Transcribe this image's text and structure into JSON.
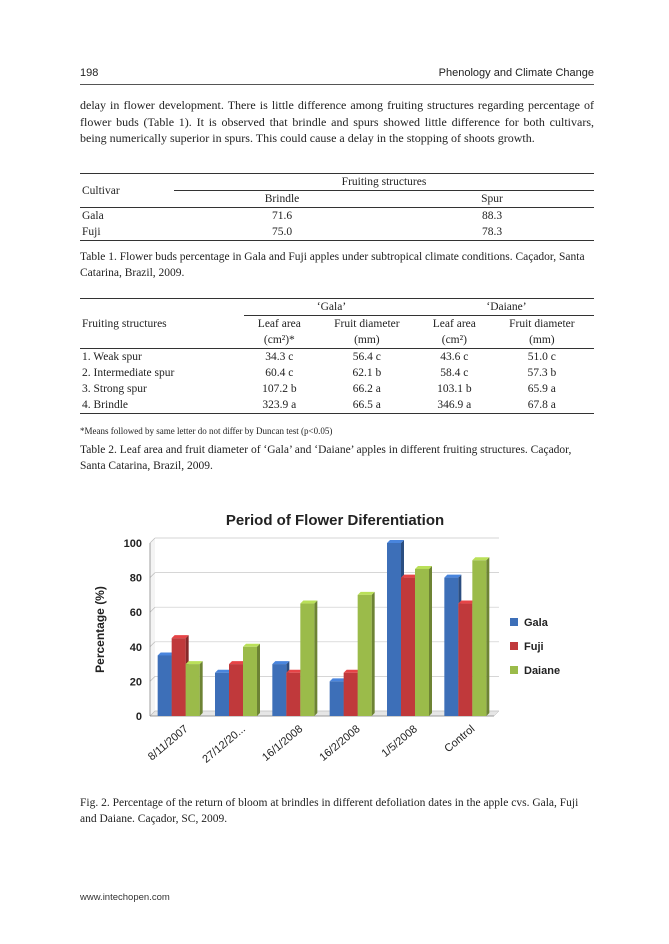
{
  "header": {
    "page_number": "198",
    "running_title": "Phenology and Climate Change"
  },
  "body_text": "delay in flower development. There is little difference among fruiting structures regarding percentage of flower buds (Table 1). It is observed that brindle and spurs showed little difference for both cultivars, being numerically superior in spurs. This could cause a delay in the stopping of shoots growth.",
  "table1": {
    "col_cultivar": "Cultivar",
    "group_header": "Fruiting structures",
    "col_brindle": "Brindle",
    "col_spur": "Spur",
    "rows": [
      {
        "cultivar": "Gala",
        "brindle": "71.6",
        "spur": "88.3"
      },
      {
        "cultivar": "Fuji",
        "brindle": "75.0",
        "spur": "78.3"
      }
    ],
    "caption": "Table 1. Flower buds percentage in Gala and Fuji apples under subtropical climate conditions. Caçador, Santa Catarina, Brazil, 2009."
  },
  "table2": {
    "group_gala": "‘Gala’",
    "group_daiane": "‘Daiane’",
    "col_structures": "Fruiting structures",
    "col_leaf_area": "Leaf area",
    "col_leaf_unit": "(cm²)*",
    "col_leaf_unit2": "(cm²)",
    "col_fruit_diam": "Fruit diameter",
    "col_fruit_unit": "(mm)",
    "rows": [
      {
        "structure": "1. Weak spur",
        "gala_leaf": "34.3 c",
        "gala_fruit": "56.4 c",
        "daiane_leaf": "43.6 c",
        "daiane_fruit": "51.0 c"
      },
      {
        "structure": "2. Intermediate spur",
        "gala_leaf": "60.4 c",
        "gala_fruit": "62.1 b",
        "daiane_leaf": "58.4 c",
        "daiane_fruit": "57.3 b"
      },
      {
        "structure": "3. Strong spur",
        "gala_leaf": "107.2 b",
        "gala_fruit": "66.2 a",
        "daiane_leaf": "103.1 b",
        "daiane_fruit": "65.9 a"
      },
      {
        "structure": "4. Brindle",
        "gala_leaf": "323.9 a",
        "gala_fruit": "66.5 a",
        "daiane_leaf": "346.9 a",
        "daiane_fruit": "67.8 a"
      }
    ],
    "note": "*Means followed by same letter do not differ by Duncan test (p<0.05)",
    "caption": "Table 2. Leaf area and fruit diameter of ‘Gala’ and ‘Daiane’ apples in different fruiting structures. Caçador, Santa Catarina, Brazil, 2009."
  },
  "chart_data": {
    "type": "bar",
    "title": "Period of Flower Diferentiation",
    "ylabel": "Percentage (%)",
    "xlabel": "",
    "ylim": [
      0,
      100
    ],
    "yticks": [
      0,
      20,
      40,
      60,
      80,
      100
    ],
    "categories": [
      "8/11/2007",
      "27/12/20...",
      "16/1/2008",
      "16/2/2008",
      "1/5/2008",
      "Control"
    ],
    "series": [
      {
        "name": "Gala",
        "color": "#3d6fb8",
        "values": [
          35,
          25,
          30,
          20,
          100,
          80
        ]
      },
      {
        "name": "Fuji",
        "color": "#c0393b",
        "values": [
          45,
          30,
          25,
          25,
          80,
          65
        ]
      },
      {
        "name": "Daiane",
        "color": "#9bbb4a",
        "values": [
          30,
          40,
          65,
          70,
          85,
          90
        ]
      }
    ],
    "legend_position": "right",
    "grid": true
  },
  "figure_caption": "Fig. 2. Percentage of the return of bloom at brindles in different defoliation dates in the apple cvs. Gala, Fuji and Daiane. Caçador, SC, 2009.",
  "footer": {
    "url": "www.intechopen.com"
  }
}
